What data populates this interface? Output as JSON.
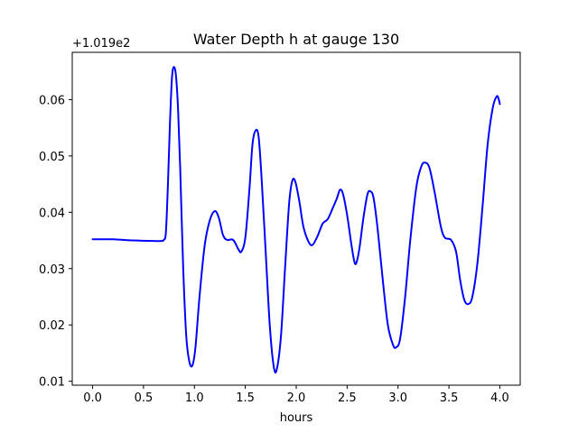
{
  "chart_data": {
    "type": "line",
    "title": "Water Depth h at gauge 130",
    "xlabel": "hours",
    "ylabel": "",
    "y_offset_label": "+1.019e2",
    "y_offset": 101.9,
    "xlim": [
      -0.2,
      4.2
    ],
    "ylim": [
      0.0093,
      0.0684
    ],
    "x_ticks": [
      0.0,
      0.5,
      1.0,
      1.5,
      2.0,
      2.5,
      3.0,
      3.5,
      4.0
    ],
    "x_tick_labels": [
      "0.0",
      "0.5",
      "1.0",
      "1.5",
      "2.0",
      "2.5",
      "3.0",
      "3.5",
      "4.0"
    ],
    "y_ticks": [
      0.01,
      0.02,
      0.03,
      0.04,
      0.05,
      0.06
    ],
    "y_tick_labels": [
      "0.01",
      "0.02",
      "0.03",
      "0.04",
      "0.05",
      "0.06"
    ],
    "grid": false,
    "series": [
      {
        "color": "#0000ff",
        "points": [
          [
            0.0,
            0.0352
          ],
          [
            0.2,
            0.0352
          ],
          [
            0.4,
            0.035
          ],
          [
            0.6,
            0.0349
          ],
          [
            0.67,
            0.0349
          ],
          [
            0.7,
            0.0351
          ],
          [
            0.72,
            0.0365
          ],
          [
            0.74,
            0.045
          ],
          [
            0.76,
            0.056
          ],
          [
            0.78,
            0.064
          ],
          [
            0.8,
            0.0658
          ],
          [
            0.82,
            0.064
          ],
          [
            0.84,
            0.058
          ],
          [
            0.86,
            0.048
          ],
          [
            0.89,
            0.03
          ],
          [
            0.92,
            0.018
          ],
          [
            0.95,
            0.0135
          ],
          [
            0.98,
            0.0128
          ],
          [
            1.01,
            0.016
          ],
          [
            1.05,
            0.025
          ],
          [
            1.1,
            0.034
          ],
          [
            1.15,
            0.0385
          ],
          [
            1.2,
            0.0402
          ],
          [
            1.24,
            0.039
          ],
          [
            1.28,
            0.036
          ],
          [
            1.32,
            0.0351
          ],
          [
            1.38,
            0.0351
          ],
          [
            1.43,
            0.0335
          ],
          [
            1.46,
            0.033
          ],
          [
            1.5,
            0.0355
          ],
          [
            1.54,
            0.044
          ],
          [
            1.57,
            0.052
          ],
          [
            1.6,
            0.0545
          ],
          [
            1.63,
            0.0535
          ],
          [
            1.66,
            0.046
          ],
          [
            1.7,
            0.033
          ],
          [
            1.74,
            0.02
          ],
          [
            1.78,
            0.0125
          ],
          [
            1.81,
            0.0122
          ],
          [
            1.85,
            0.018
          ],
          [
            1.89,
            0.03
          ],
          [
            1.93,
            0.0415
          ],
          [
            1.96,
            0.0455
          ],
          [
            1.99,
            0.0455
          ],
          [
            2.03,
            0.042
          ],
          [
            2.07,
            0.0375
          ],
          [
            2.12,
            0.0348
          ],
          [
            2.16,
            0.0342
          ],
          [
            2.21,
            0.0358
          ],
          [
            2.26,
            0.038
          ],
          [
            2.31,
            0.0388
          ],
          [
            2.36,
            0.0408
          ],
          [
            2.4,
            0.0425
          ],
          [
            2.43,
            0.044
          ],
          [
            2.46,
            0.0432
          ],
          [
            2.5,
            0.0395
          ],
          [
            2.54,
            0.0345
          ],
          [
            2.57,
            0.0313
          ],
          [
            2.59,
            0.031
          ],
          [
            2.62,
            0.0335
          ],
          [
            2.66,
            0.039
          ],
          [
            2.7,
            0.0432
          ],
          [
            2.73,
            0.0437
          ],
          [
            2.76,
            0.0425
          ],
          [
            2.8,
            0.037
          ],
          [
            2.85,
            0.028
          ],
          [
            2.9,
            0.02
          ],
          [
            2.95,
            0.0165
          ],
          [
            2.98,
            0.016
          ],
          [
            3.02,
            0.0175
          ],
          [
            3.07,
            0.025
          ],
          [
            3.12,
            0.035
          ],
          [
            3.18,
            0.0445
          ],
          [
            3.23,
            0.0482
          ],
          [
            3.27,
            0.0488
          ],
          [
            3.31,
            0.0478
          ],
          [
            3.36,
            0.0435
          ],
          [
            3.42,
            0.0375
          ],
          [
            3.46,
            0.0355
          ],
          [
            3.52,
            0.0351
          ],
          [
            3.57,
            0.033
          ],
          [
            3.61,
            0.028
          ],
          [
            3.65,
            0.0245
          ],
          [
            3.69,
            0.0237
          ],
          [
            3.73,
            0.025
          ],
          [
            3.78,
            0.031
          ],
          [
            3.83,
            0.041
          ],
          [
            3.88,
            0.052
          ],
          [
            3.93,
            0.0585
          ],
          [
            3.97,
            0.0606
          ],
          [
            3.99,
            0.06
          ],
          [
            4.0,
            0.0592
          ]
        ]
      }
    ]
  }
}
